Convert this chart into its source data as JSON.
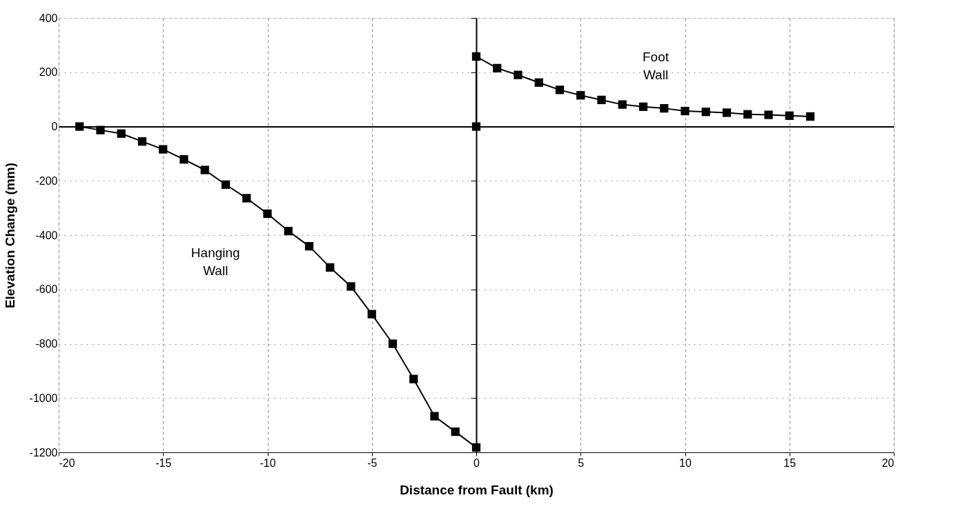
{
  "chart_data": {
    "type": "line",
    "xlabel": "Distance from Fault (km)",
    "ylabel": "Elevation Change (mm)",
    "xlim": [
      -20,
      20
    ],
    "xticks": [
      -20,
      -15,
      -10,
      -5,
      0,
      5,
      10,
      15,
      20
    ],
    "ylim": [
      -1200,
      400
    ],
    "yticks": [
      -1200,
      -1000,
      -800,
      -600,
      -400,
      -200,
      0,
      200,
      400
    ],
    "grid": true,
    "marker": "square",
    "line_style": "solid",
    "series": [
      {
        "name": "Hanging Wall",
        "color": "#000000",
        "x": [
          -19,
          -18,
          -17,
          -16,
          -15,
          -14,
          -13,
          -12,
          -11,
          -10,
          -9,
          -8,
          -7,
          -6,
          -5,
          -4,
          -3,
          -2,
          -1,
          0
        ],
        "values": [
          0,
          -13,
          -26,
          -55,
          -84,
          -121,
          -160,
          -214,
          -264,
          -321,
          -385,
          -441,
          -519,
          -589,
          -691,
          -800,
          -930,
          -1067,
          -1124,
          -1182
        ]
      },
      {
        "name": "Foot Wall",
        "color": "#000000",
        "x": [
          0,
          0,
          1,
          2,
          3,
          4,
          5,
          6,
          7,
          8,
          9,
          10,
          11,
          12,
          13,
          14,
          15,
          16
        ],
        "values": [
          0,
          258,
          215,
          190,
          162,
          135,
          115,
          98,
          81,
          73,
          67,
          57,
          54,
          51,
          45,
          43,
          40,
          37
        ]
      }
    ]
  }
}
